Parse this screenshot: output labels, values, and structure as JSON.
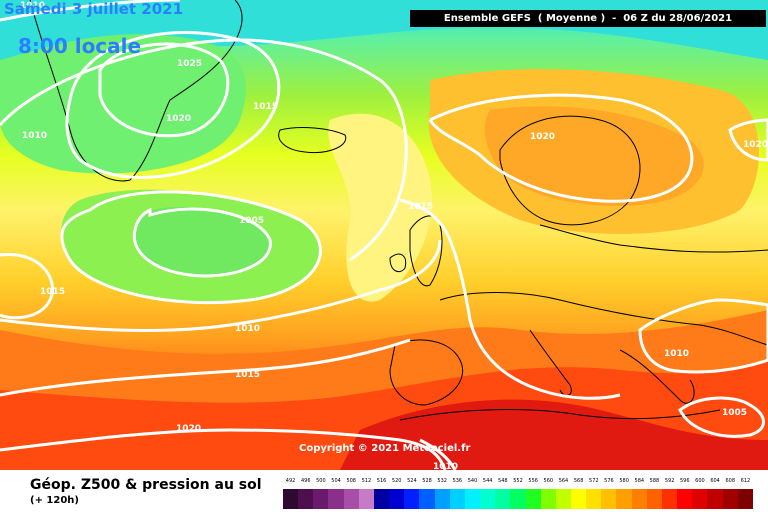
{
  "header": {
    "date_text": "Samedi 3 juillet 2021",
    "time_text": "8:00 locale",
    "ensemble_text": "Ensemble GEFS  ( Moyenne )  -  06 Z du 28/06/2021"
  },
  "map": {
    "copyright": "Copyright © 2021 Meteociel.fr",
    "isobar_labels": [
      "1010",
      "1025",
      "1020",
      "1015",
      "1010",
      "1005",
      "1020",
      "1015",
      "1020",
      "1015",
      "1010",
      "1015",
      "1020",
      "1010",
      "1005",
      "1010"
    ]
  },
  "legend": {
    "title": "Géop. Z500 & pression au sol",
    "subtitle": "(+ 120h)",
    "scale_values": [
      "492",
      "496",
      "500",
      "504",
      "508",
      "512",
      "516",
      "520",
      "524",
      "528",
      "532",
      "536",
      "540",
      "544",
      "548",
      "552",
      "556",
      "560",
      "564",
      "568",
      "572",
      "576",
      "580",
      "584",
      "588",
      "592",
      "596",
      "600",
      "604",
      "608",
      "612"
    ],
    "scale_colors": [
      "#2e0a2e",
      "#4d0f4d",
      "#6b1a6b",
      "#8a2f8a",
      "#a84ea8",
      "#c57bc5",
      "#0000a0",
      "#0000d0",
      "#0020ff",
      "#0060ff",
      "#00a0ff",
      "#00d0ff",
      "#00f0ff",
      "#00ffd0",
      "#00ffa0",
      "#00ff60",
      "#20ff20",
      "#80ff00",
      "#c0ff00",
      "#ffff00",
      "#ffe000",
      "#ffc000",
      "#ffa000",
      "#ff8000",
      "#ff6000",
      "#ff3000",
      "#ff0000",
      "#e00000",
      "#c00000",
      "#a00000",
      "#800000"
    ]
  },
  "colors": {
    "isobar": "#ffffff",
    "date_text": "#2a7fff"
  }
}
